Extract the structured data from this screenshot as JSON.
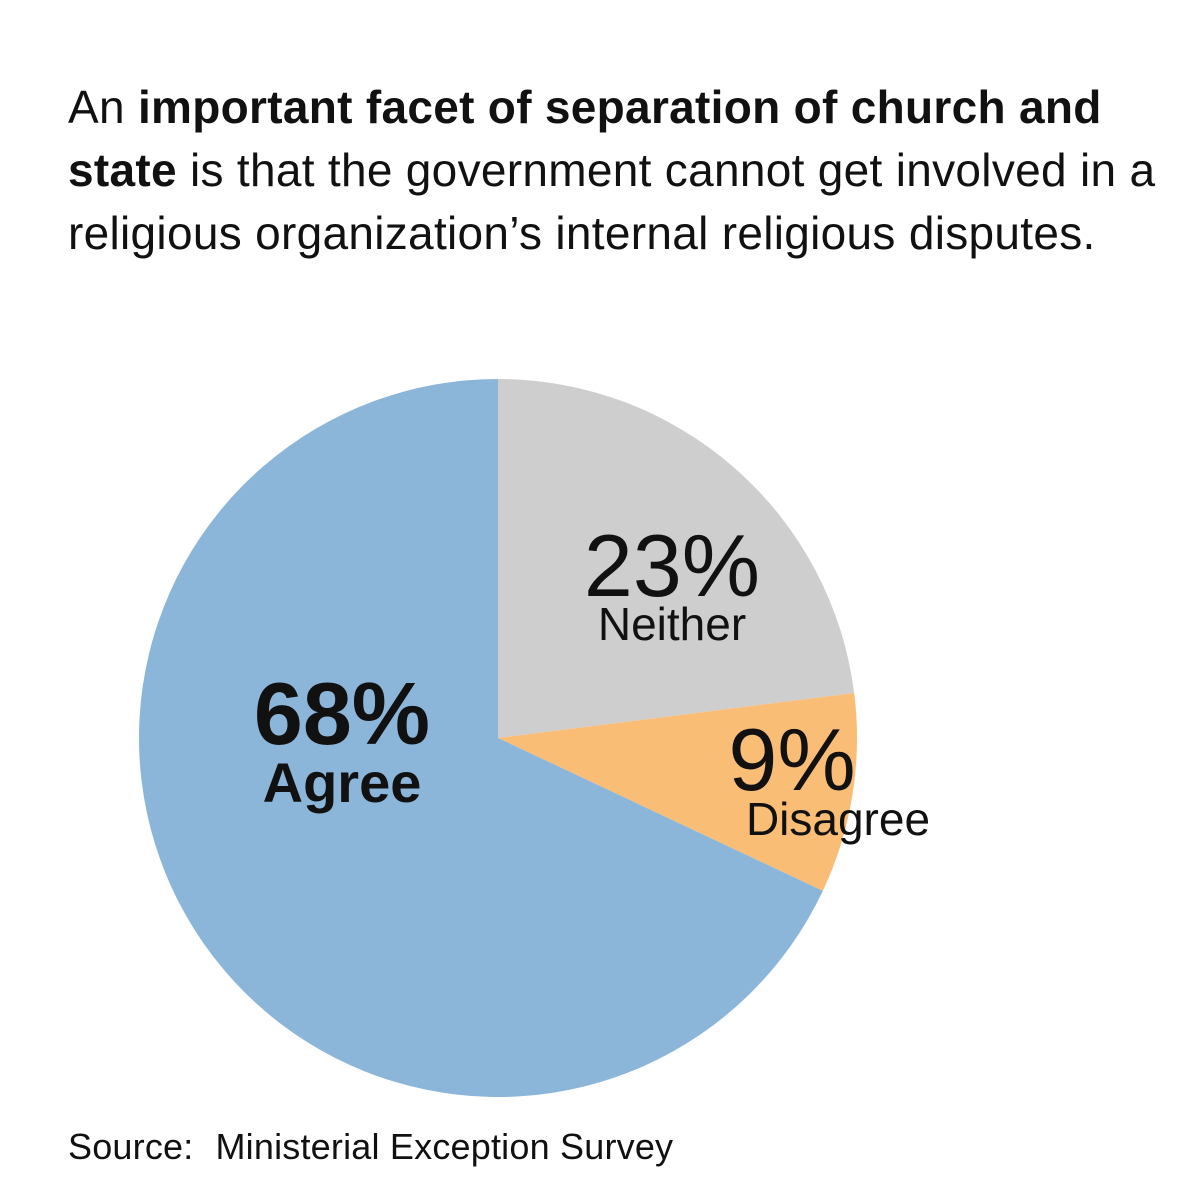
{
  "headline": {
    "pre": "An ",
    "bold": "important facet of separation of church and state",
    "post": " is that the government cannot get involved in a religious organization’s internal religious disputes."
  },
  "chart_data": {
    "type": "pie",
    "title": "An important facet of separation of church and state is that the government cannot get involved in a religious organization’s internal religious disputes.",
    "start": "12 o'clock",
    "direction": "clockwise",
    "slices": [
      {
        "label": "Neither",
        "value": 23,
        "value_label": "23%",
        "color": "#cecece",
        "emphasis": false
      },
      {
        "label": "Disagree",
        "value": 9,
        "value_label": "9%",
        "color": "#f9bd76",
        "emphasis": false
      },
      {
        "label": "Agree",
        "value": 68,
        "value_label": "68%",
        "color": "#8bb6da",
        "emphasis": true
      }
    ]
  },
  "source": {
    "label": "Source:",
    "text": "Ministerial Exception Survey"
  }
}
